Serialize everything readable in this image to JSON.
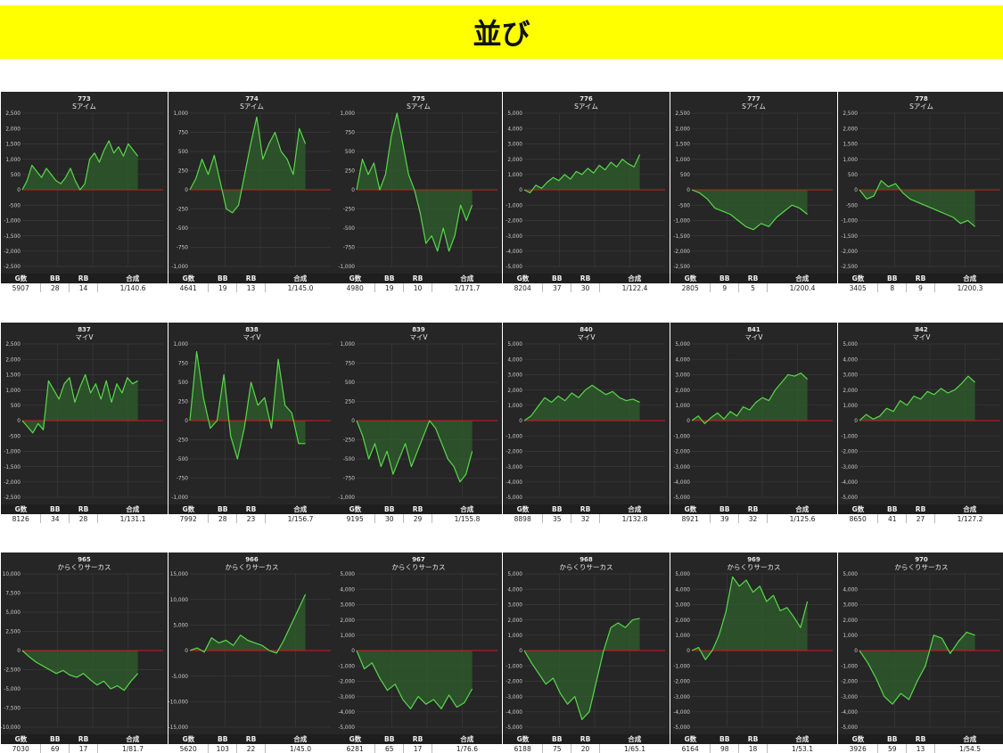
{
  "page": {
    "title": "並び"
  },
  "colors": {
    "background": "#262626",
    "line": "#58d84a",
    "fill": "#2f5f2c",
    "zero_line": "#c81e1e",
    "grid": "#3a3a3a",
    "banner": "#ffff00"
  },
  "stat_headers": {
    "games": "G数",
    "bb": "BB",
    "rb": "RB",
    "ratio": "合成"
  },
  "chart_data": [
    {
      "type": "line",
      "title": "773",
      "subtitle": "Sアイム",
      "ylim": [
        -2500,
        2500
      ],
      "yticks": [
        "2,500",
        "2,000",
        "1,500",
        "1,000",
        "500",
        "0",
        "-500",
        "-1,000",
        "-1,500",
        "-2,000",
        "-2,500"
      ],
      "values": [
        0,
        300,
        800,
        600,
        400,
        700,
        500,
        300,
        200,
        400,
        700,
        300,
        0,
        200,
        1000,
        1200,
        900,
        1300,
        1600,
        1200,
        1400,
        1100,
        1500,
        1300,
        1100
      ],
      "stats": {
        "games": "5907",
        "bb": "28",
        "rb": "14",
        "ratio": "1/140.6"
      }
    },
    {
      "type": "line",
      "title": "774",
      "subtitle": "Sアイム",
      "ylim": [
        -1000,
        1000
      ],
      "yticks": [
        "1,000",
        "750",
        "500",
        "250",
        "0",
        "-250",
        "-500",
        "-750",
        "-1,000"
      ],
      "values": [
        0,
        150,
        400,
        200,
        450,
        100,
        -250,
        -300,
        -200,
        200,
        600,
        950,
        400,
        600,
        750,
        500,
        400,
        200,
        800,
        600
      ],
      "stats": {
        "games": "4641",
        "bb": "19",
        "rb": "13",
        "ratio": "1/145.0"
      }
    },
    {
      "type": "line",
      "title": "775",
      "subtitle": "Sアイム",
      "ylim": [
        -1000,
        1000
      ],
      "yticks": [
        "1,000",
        "750",
        "500",
        "250",
        "0",
        "-250",
        "-500",
        "-750",
        "-1,000"
      ],
      "values": [
        0,
        400,
        200,
        350,
        0,
        200,
        700,
        1000,
        600,
        200,
        0,
        -300,
        -700,
        -600,
        -800,
        -500,
        -800,
        -600,
        -200,
        -400,
        -200
      ],
      "stats": {
        "games": "4980",
        "bb": "19",
        "rb": "10",
        "ratio": "1/171.7"
      }
    },
    {
      "type": "line",
      "title": "776",
      "subtitle": "Sアイム",
      "ylim": [
        -5000,
        5000
      ],
      "yticks": [
        "5,000",
        "4,000",
        "3,000",
        "2,000",
        "1,000",
        "0",
        "-1,000",
        "-2,000",
        "-3,000",
        "-4,000",
        "-5,000"
      ],
      "values": [
        0,
        -200,
        300,
        100,
        500,
        800,
        600,
        1000,
        700,
        1200,
        1000,
        1400,
        1100,
        1600,
        1300,
        1800,
        1500,
        2000,
        1700,
        1500,
        2300
      ],
      "stats": {
        "games": "8204",
        "bb": "37",
        "rb": "30",
        "ratio": "1/122.4"
      }
    },
    {
      "type": "line",
      "title": "777",
      "subtitle": "Sアイム",
      "ylim": [
        -2500,
        2500
      ],
      "yticks": [
        "2,500",
        "2,000",
        "1,500",
        "1,000",
        "500",
        "0",
        "-500",
        "-1,000",
        "-1,500",
        "-2,000",
        "-2,500"
      ],
      "values": [
        0,
        -100,
        -300,
        -600,
        -700,
        -800,
        -1000,
        -1200,
        -1300,
        -1100,
        -1200,
        -900,
        -700,
        -500,
        -600,
        -800
      ],
      "stats": {
        "games": "2805",
        "bb": "9",
        "rb": "5",
        "ratio": "1/200.4"
      }
    },
    {
      "type": "line",
      "title": "778",
      "subtitle": "Sアイム",
      "ylim": [
        -2500,
        2500
      ],
      "yticks": [
        "2,500",
        "2,000",
        "1,500",
        "1,000",
        "500",
        "0",
        "-500",
        "-1,000",
        "-1,500",
        "-2,000",
        "-2,500"
      ],
      "values": [
        0,
        -300,
        -200,
        300,
        100,
        200,
        -100,
        -300,
        -400,
        -500,
        -600,
        -700,
        -800,
        -900,
        -1100,
        -1000,
        -1200
      ],
      "stats": {
        "games": "3405",
        "bb": "8",
        "rb": "9",
        "ratio": "1/200.3"
      }
    },
    {
      "type": "line",
      "title": "837",
      "subtitle": "マイV",
      "ylim": [
        -2500,
        2500
      ],
      "yticks": [
        "2,500",
        "2,000",
        "1,500",
        "1,000",
        "500",
        "0",
        "-500",
        "-1,000",
        "-1,500",
        "-2,000",
        "-2,500"
      ],
      "values": [
        0,
        -200,
        -400,
        -100,
        -300,
        1300,
        1000,
        700,
        1200,
        1400,
        600,
        1100,
        1500,
        900,
        1200,
        700,
        1300,
        600,
        1200,
        900,
        1400,
        1200,
        1300
      ],
      "stats": {
        "games": "8126",
        "bb": "34",
        "rb": "28",
        "ratio": "1/131.1"
      }
    },
    {
      "type": "line",
      "title": "838",
      "subtitle": "マイV",
      "ylim": [
        -1000,
        1000
      ],
      "yticks": [
        "1,000",
        "750",
        "500",
        "250",
        "0",
        "-250",
        "-500",
        "-750",
        "-1,000"
      ],
      "values": [
        0,
        900,
        300,
        -100,
        0,
        600,
        -200,
        -500,
        -100,
        500,
        200,
        300,
        -100,
        800,
        200,
        100,
        -300,
        -300
      ],
      "stats": {
        "games": "7992",
        "bb": "28",
        "rb": "23",
        "ratio": "1/156.7"
      }
    },
    {
      "type": "line",
      "title": "839",
      "subtitle": "マイV",
      "ylim": [
        -1000,
        1000
      ],
      "yticks": [
        "1,000",
        "750",
        "500",
        "250",
        "0",
        "-250",
        "-500",
        "-750",
        "-1,000"
      ],
      "values": [
        0,
        -200,
        -500,
        -300,
        -600,
        -400,
        -700,
        -500,
        -300,
        -600,
        -400,
        -200,
        0,
        -100,
        -300,
        -500,
        -600,
        -800,
        -700,
        -400
      ],
      "stats": {
        "games": "9195",
        "bb": "30",
        "rb": "29",
        "ratio": "1/155.8"
      }
    },
    {
      "type": "line",
      "title": "840",
      "subtitle": "マイV",
      "ylim": [
        -5000,
        5000
      ],
      "yticks": [
        "5,000",
        "4,000",
        "3,000",
        "2,000",
        "1,000",
        "0",
        "-1,000",
        "-2,000",
        "-3,000",
        "-4,000",
        "-5,000"
      ],
      "values": [
        0,
        300,
        900,
        1500,
        1200,
        1600,
        1300,
        1800,
        1500,
        2000,
        2300,
        2000,
        1700,
        1900,
        1500,
        1300,
        1400,
        1200
      ],
      "stats": {
        "games": "8898",
        "bb": "35",
        "rb": "32",
        "ratio": "1/132.8"
      }
    },
    {
      "type": "line",
      "title": "841",
      "subtitle": "マイV",
      "ylim": [
        -5000,
        5000
      ],
      "yticks": [
        "5,000",
        "4,000",
        "3,000",
        "2,000",
        "1,000",
        "0",
        "-1,000",
        "-2,000",
        "-3,000",
        "-4,000",
        "-5,000"
      ],
      "values": [
        0,
        300,
        -200,
        200,
        500,
        100,
        600,
        300,
        900,
        700,
        1200,
        1500,
        1300,
        2000,
        2500,
        3000,
        2900,
        3100,
        2700
      ],
      "stats": {
        "games": "8921",
        "bb": "39",
        "rb": "32",
        "ratio": "1/125.6"
      }
    },
    {
      "type": "line",
      "title": "842",
      "subtitle": "マイV",
      "ylim": [
        -5000,
        5000
      ],
      "yticks": [
        "5,000",
        "4,000",
        "3,000",
        "2,000",
        "1,000",
        "0",
        "-1,000",
        "-2,000",
        "-3,000",
        "-4,000",
        "-5,000"
      ],
      "values": [
        0,
        400,
        100,
        300,
        800,
        600,
        1300,
        1000,
        1600,
        1400,
        1900,
        1700,
        2100,
        1800,
        2000,
        2400,
        2900,
        2500
      ],
      "stats": {
        "games": "8650",
        "bb": "41",
        "rb": "27",
        "ratio": "1/127.2"
      }
    },
    {
      "type": "line",
      "title": "965",
      "subtitle": "からくりサーカス",
      "ylim": [
        -10000,
        10000
      ],
      "yticks": [
        "10,000",
        "7,500",
        "5,000",
        "2,500",
        "0",
        "-2,500",
        "-5,000",
        "-7,500",
        "-10,000"
      ],
      "values": [
        0,
        -800,
        -1500,
        -2000,
        -2500,
        -3000,
        -2600,
        -3200,
        -3500,
        -3000,
        -3800,
        -4500,
        -4000,
        -5000,
        -4600,
        -5200,
        -4000,
        -3000
      ],
      "stats": {
        "games": "7030",
        "bb": "69",
        "rb": "17",
        "ratio": "1/81.7"
      }
    },
    {
      "type": "line",
      "title": "966",
      "subtitle": "からくりサーカス",
      "ylim": [
        -15000,
        15000
      ],
      "yticks": [
        "15,000",
        "10,000",
        "5,000",
        "0",
        "-5,000",
        "-10,000",
        "-15,000"
      ],
      "values": [
        0,
        500,
        -300,
        2500,
        1500,
        2000,
        1000,
        3000,
        2000,
        1500,
        1000,
        0,
        -500,
        2000,
        5000,
        8000,
        11000
      ],
      "stats": {
        "games": "5620",
        "bb": "103",
        "rb": "22",
        "ratio": "1/45.0"
      }
    },
    {
      "type": "line",
      "title": "967",
      "subtitle": "からくりサーカス",
      "ylim": [
        -5000,
        5000
      ],
      "yticks": [
        "5,000",
        "4,000",
        "3,000",
        "2,000",
        "1,000",
        "0",
        "-1,000",
        "-2,000",
        "-3,000",
        "-4,000",
        "-5,000"
      ],
      "values": [
        0,
        -1200,
        -800,
        -1800,
        -2600,
        -2200,
        -3200,
        -3800,
        -3000,
        -3500,
        -3200,
        -3800,
        -2900,
        -3700,
        -3400,
        -2500
      ],
      "stats": {
        "games": "6281",
        "bb": "65",
        "rb": "17",
        "ratio": "1/76.6"
      }
    },
    {
      "type": "line",
      "title": "968",
      "subtitle": "からくりサーカス",
      "ylim": [
        -5000,
        5000
      ],
      "yticks": [
        "5,000",
        "4,000",
        "3,000",
        "2,000",
        "1,000",
        "0",
        "-1,000",
        "-2,000",
        "-3,000",
        "-4,000",
        "-5,000"
      ],
      "values": [
        0,
        -800,
        -1500,
        -2200,
        -1800,
        -2800,
        -3500,
        -3000,
        -4500,
        -4000,
        -2000,
        0,
        1500,
        1800,
        1500,
        2000,
        2100
      ],
      "stats": {
        "games": "6188",
        "bb": "75",
        "rb": "20",
        "ratio": "1/65.1"
      }
    },
    {
      "type": "line",
      "title": "969",
      "subtitle": "からくりサーカス",
      "ylim": [
        -5000,
        5000
      ],
      "yticks": [
        "5,000",
        "4,000",
        "3,000",
        "2,000",
        "1,000",
        "0",
        "-1,000",
        "-2,000",
        "-3,000",
        "-4,000",
        "-5,000"
      ],
      "values": [
        0,
        200,
        -600,
        0,
        1000,
        2500,
        4800,
        4200,
        4600,
        3800,
        4200,
        3200,
        3600,
        2600,
        2800,
        2200,
        1500,
        3200
      ],
      "stats": {
        "games": "6164",
        "bb": "98",
        "rb": "18",
        "ratio": "1/53.1"
      }
    },
    {
      "type": "line",
      "title": "970",
      "subtitle": "からくりサーカス",
      "ylim": [
        -5000,
        5000
      ],
      "yticks": [
        "5,000",
        "4,000",
        "3,000",
        "2,000",
        "1,000",
        "0",
        "-1,000",
        "-2,000",
        "-3,000",
        "-4,000",
        "-5,000"
      ],
      "values": [
        0,
        -800,
        -1800,
        -3000,
        -3500,
        -2800,
        -3200,
        -2000,
        -1000,
        1000,
        800,
        -200,
        600,
        1200,
        1000
      ],
      "stats": {
        "games": "3926",
        "bb": "59",
        "rb": "13",
        "ratio": "1/54.5"
      }
    }
  ]
}
